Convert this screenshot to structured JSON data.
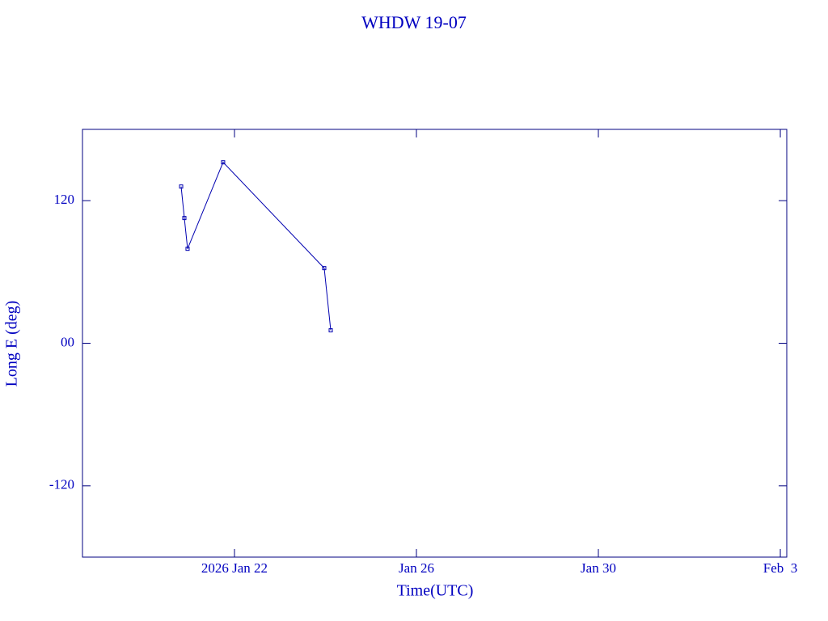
{
  "chart_data": {
    "type": "line",
    "title": "WHDW 19-07",
    "x_label": "Time(UTC)",
    "y_label": "Long E (deg)",
    "x": [
      "2026-01-20T19:51",
      "2026-01-20T21:33",
      "2026-01-20T23:15",
      "2026-01-21T18:00",
      "2026-01-23T23:21",
      "2026-01-24T02:47"
    ],
    "series": [
      {
        "color": "#0000b0",
        "values": [
          131.9,
          105.4,
          79.5,
          152.3,
          63.2,
          10.9
        ]
      }
    ],
    "xlim": [
      "2026-01-18T15:48",
      "2026-02-03T03:24"
    ],
    "xticks": [
      {
        "value": "2026-01-22",
        "label": "2026 Jan 22"
      },
      {
        "value": "2026-01-26",
        "label": "Jan 26"
      },
      {
        "value": "2026-01-30",
        "label": "Jan 30"
      },
      {
        "value": "2026-02-03",
        "label": "Feb  3"
      }
    ],
    "ylim": [
      -180,
      180
    ],
    "yticks": [
      120,
      {
        "value": 0,
        "label": "00"
      },
      -120
    ]
  }
}
